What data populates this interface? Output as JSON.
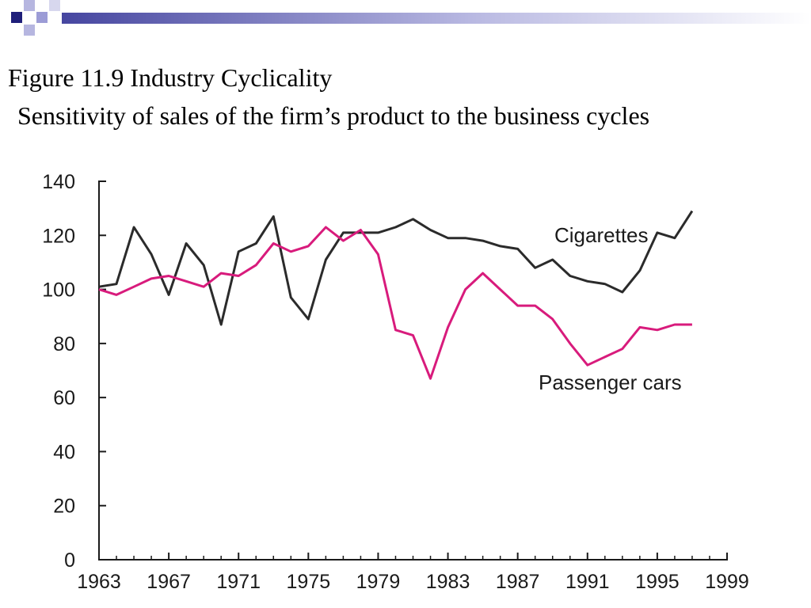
{
  "slide": {
    "title_line1": "Figure 11.9 Industry Cyclicality",
    "title_line2": "Sensitivity of sales of the firm’s product to the business cycles"
  },
  "colors": {
    "accent_navy": "#1f1f7a",
    "accent_lavender": "#9c9cd6",
    "cigarettes": "#2b2b2b",
    "passenger_cars": "#d81b7c"
  },
  "chart_data": {
    "type": "line",
    "title": "",
    "xlabel": "",
    "ylabel": "",
    "xlim": [
      1963,
      1999
    ],
    "ylim": [
      0,
      140
    ],
    "x_ticks": [
      1963,
      1967,
      1971,
      1975,
      1979,
      1983,
      1987,
      1991,
      1995,
      1999
    ],
    "y_ticks": [
      0,
      20,
      40,
      60,
      80,
      100,
      120,
      140
    ],
    "grid": false,
    "series": [
      {
        "name": "Cigarettes",
        "color": "#2b2b2b",
        "x": [
          1963,
          1964,
          1965,
          1966,
          1967,
          1968,
          1969,
          1970,
          1971,
          1972,
          1973,
          1974,
          1975,
          1976,
          1977,
          1978,
          1979,
          1980,
          1981,
          1982,
          1983,
          1984,
          1985,
          1986,
          1987,
          1988,
          1989,
          1990,
          1991,
          1992,
          1993,
          1994,
          1995,
          1996,
          1997,
          1998
        ],
        "y": [
          101,
          102,
          123,
          113,
          98,
          117,
          109,
          87,
          114,
          117,
          127,
          97,
          89,
          111,
          121,
          121,
          121,
          123,
          126,
          122,
          119,
          119,
          118,
          116,
          115,
          108,
          111,
          105,
          103,
          102,
          99,
          107,
          121,
          119,
          129,
          null
        ]
      },
      {
        "name": "Passenger cars",
        "color": "#d81b7c",
        "x": [
          1963,
          1964,
          1965,
          1966,
          1967,
          1968,
          1969,
          1970,
          1971,
          1972,
          1973,
          1974,
          1975,
          1976,
          1977,
          1978,
          1979,
          1980,
          1981,
          1982,
          1983,
          1984,
          1985,
          1986,
          1987,
          1988,
          1989,
          1990,
          1991,
          1992,
          1993,
          1994,
          1995,
          1996,
          1997,
          1998
        ],
        "y": [
          100,
          98,
          101,
          104,
          105,
          103,
          101,
          106,
          105,
          109,
          117,
          114,
          116,
          123,
          118,
          122,
          113,
          85,
          83,
          67,
          86,
          100,
          106,
          100,
          94,
          94,
          89,
          80,
          72,
          75,
          78,
          86,
          85,
          87,
          87,
          null
        ]
      }
    ]
  }
}
